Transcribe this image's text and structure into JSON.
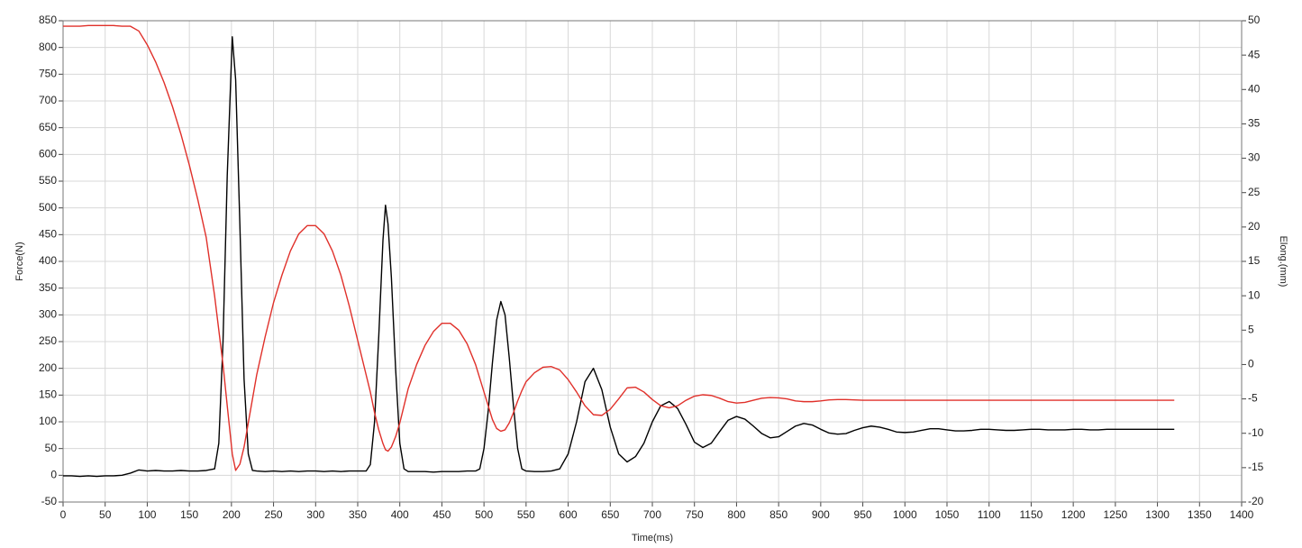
{
  "chart_data": {
    "type": "line",
    "xlabel": "Time(ms)",
    "ylabel": "Force(N)",
    "y2label": "Elong.(mm)",
    "grid": true,
    "xlim": [
      0,
      1400
    ],
    "ylim": [
      -50,
      850
    ],
    "y2lim": [
      -20,
      50
    ],
    "xticks": [
      0,
      50,
      100,
      150,
      200,
      250,
      300,
      350,
      400,
      450,
      500,
      550,
      600,
      650,
      700,
      750,
      800,
      850,
      900,
      950,
      1000,
      1050,
      1100,
      1150,
      1200,
      1250,
      1300,
      1350,
      1400
    ],
    "yticks": [
      -50,
      0,
      50,
      100,
      150,
      200,
      250,
      300,
      350,
      400,
      450,
      500,
      550,
      600,
      650,
      700,
      750,
      800,
      850
    ],
    "y2ticks": [
      -20,
      -15,
      -10,
      -5,
      0,
      5,
      10,
      15,
      20,
      25,
      30,
      35,
      40,
      45,
      50
    ],
    "x": [
      0,
      10,
      20,
      30,
      40,
      50,
      60,
      70,
      80,
      90,
      100,
      110,
      120,
      130,
      140,
      150,
      160,
      170,
      180,
      185,
      190,
      195,
      201,
      205,
      210,
      215,
      220,
      225,
      230,
      240,
      250,
      260,
      270,
      280,
      290,
      300,
      310,
      320,
      330,
      340,
      350,
      360,
      365,
      370,
      375,
      380,
      383,
      386,
      390,
      395,
      400,
      405,
      410,
      420,
      430,
      440,
      450,
      460,
      470,
      480,
      490,
      495,
      500,
      505,
      510,
      515,
      520,
      525,
      530,
      535,
      540,
      545,
      550,
      560,
      570,
      580,
      590,
      600,
      610,
      620,
      630,
      640,
      650,
      660,
      670,
      680,
      690,
      700,
      710,
      720,
      730,
      740,
      750,
      760,
      770,
      780,
      790,
      800,
      810,
      820,
      830,
      840,
      850,
      860,
      870,
      880,
      890,
      900,
      910,
      920,
      930,
      940,
      950,
      960,
      970,
      980,
      990,
      1000,
      1010,
      1020,
      1030,
      1040,
      1050,
      1060,
      1070,
      1080,
      1090,
      1100,
      1110,
      1120,
      1130,
      1140,
      1150,
      1160,
      1170,
      1180,
      1190,
      1200,
      1210,
      1220,
      1230,
      1240,
      1250,
      1260,
      1270,
      1280,
      1290,
      1300,
      1310,
      1320
    ],
    "series": [
      {
        "color": "#000000",
        "values": [
          -1,
          -1,
          -2,
          -1,
          -2,
          -1,
          -1,
          0,
          4,
          10,
          8,
          9,
          8,
          8,
          9,
          8,
          8,
          9,
          12,
          60,
          250,
          560,
          820,
          740,
          470,
          180,
          40,
          9,
          8,
          7,
          8,
          7,
          8,
          7,
          8,
          8,
          7,
          8,
          7,
          8,
          8,
          8,
          20,
          100,
          260,
          440,
          505,
          470,
          370,
          200,
          60,
          12,
          7,
          7,
          7,
          6,
          7,
          7,
          7,
          8,
          8,
          12,
          50,
          120,
          210,
          290,
          325,
          300,
          220,
          130,
          50,
          12,
          8,
          7,
          7,
          8,
          12,
          40,
          100,
          175,
          200,
          160,
          90,
          40,
          25,
          35,
          60,
          100,
          130,
          138,
          125,
          95,
          62,
          52,
          60,
          82,
          103,
          110,
          105,
          92,
          78,
          70,
          72,
          82,
          92,
          97,
          94,
          86,
          79,
          77,
          78,
          84,
          89,
          92,
          90,
          86,
          81,
          80,
          81,
          84,
          87,
          87,
          85,
          83,
          83,
          84,
          86,
          86,
          85,
          84,
          84,
          85,
          86,
          86,
          85,
          85,
          85,
          86,
          86,
          85,
          85,
          86,
          86,
          86,
          86,
          86,
          86,
          86,
          86,
          86
        ]
      },
      {
        "color": "#e0302a",
        "axis": "y2",
        "values": [
          49.2,
          49.2,
          49.2,
          49.3,
          49.3,
          49.3,
          49.3,
          49.2,
          49.2,
          48.5,
          46.5,
          44,
          41,
          37.5,
          33.5,
          29,
          24,
          18.5,
          10,
          5,
          0,
          -6,
          -13,
          -15.4,
          -14.5,
          -12,
          -8.5,
          -5,
          -1.5,
          4,
          9,
          13,
          16.5,
          19,
          20.2,
          20.2,
          19,
          16.5,
          13,
          8.5,
          3.5,
          -1.5,
          -4,
          -7,
          -9.5,
          -11.5,
          -12.4,
          -12.6,
          -12,
          -10.5,
          -8.5,
          -6,
          -3.5,
          0,
          2.8,
          4.8,
          6,
          6,
          5,
          3,
          0,
          -2,
          -4,
          -6,
          -8,
          -9.3,
          -9.7,
          -9.5,
          -8.5,
          -7,
          -5.3,
          -3.8,
          -2.5,
          -1.2,
          -0.4,
          -0.3,
          -0.8,
          -2.2,
          -4,
          -6,
          -7.3,
          -7.4,
          -6.5,
          -5,
          -3.4,
          -3.3,
          -4,
          -5.1,
          -6,
          -6.3,
          -6,
          -5.2,
          -4.6,
          -4.4,
          -4.5,
          -4.9,
          -5.4,
          -5.6,
          -5.5,
          -5.2,
          -4.9,
          -4.8,
          -4.85,
          -5,
          -5.3,
          -5.4,
          -5.4,
          -5.3,
          -5.15,
          -5.1,
          -5.1,
          -5.15,
          -5.2,
          -5.2,
          -5.2,
          -5.2,
          -5.2,
          -5.2,
          -5.2,
          -5.2,
          -5.2,
          -5.2,
          -5.2,
          -5.2,
          -5.2,
          -5.2,
          -5.2,
          -5.2,
          -5.2,
          -5.2,
          -5.2,
          -5.2,
          -5.2,
          -5.2,
          -5.2,
          -5.2,
          -5.2,
          -5.2,
          -5.2,
          -5.2,
          -5.2,
          -5.2,
          -5.2,
          -5.2,
          -5.2,
          -5.2,
          -5.2,
          -5.2,
          -5.2,
          -5.2
        ]
      }
    ]
  }
}
